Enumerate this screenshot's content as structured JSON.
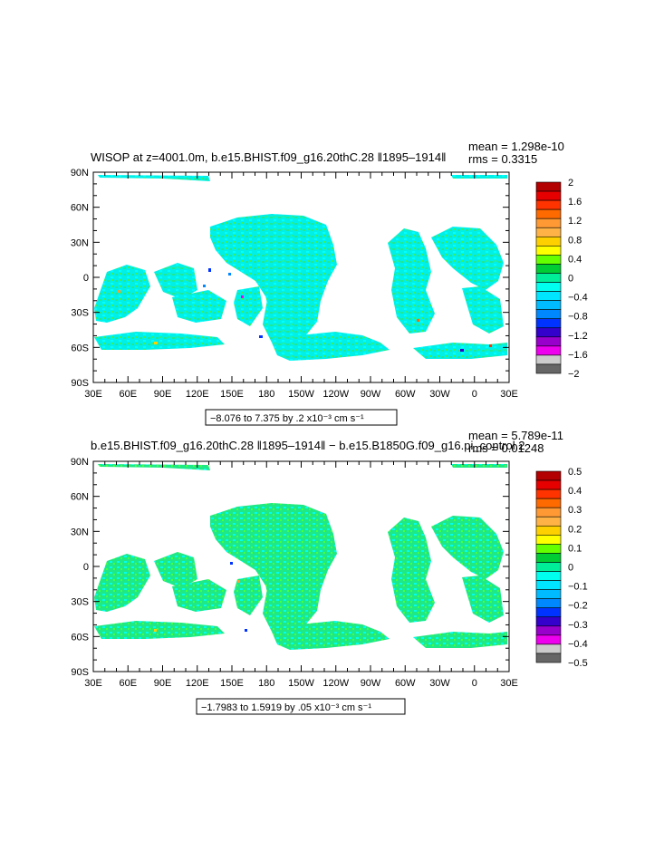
{
  "chart_data": [
    {
      "type": "heatmap",
      "title": "WISOP at z=4001.0m, b.e15.BHIST.f09_g16.20thC.28 ‖1895–1914‖",
      "stats": [
        "mean = 1.298e-10",
        "rms = 0.3315"
      ],
      "x_ticks": [
        "30E",
        "60E",
        "90E",
        "120E",
        "150E",
        "180",
        "150W",
        "120W",
        "90W",
        "60W",
        "30W",
        "0",
        "30E"
      ],
      "y_ticks": [
        "90N",
        "60N",
        "30N",
        "0",
        "30S",
        "60S",
        "90S"
      ],
      "xlim": [
        30,
        390
      ],
      "ylim": [
        -90,
        90
      ],
      "range_label": "−8.076 to 7.375 by .2 x10⁻³ cm s⁻¹",
      "colorbar": {
        "labels": [
          "2",
          "1.6",
          "1.2",
          "0.8",
          "0.4",
          "0",
          "−0.4",
          "−0.8",
          "−1.2",
          "−1.6",
          "−2"
        ],
        "colors": [
          "#b30000",
          "#e60000",
          "#ff3300",
          "#ff6a00",
          "#ff9933",
          "#ffb347",
          "#ffd000",
          "#ffff00",
          "#66ff00",
          "#00cc33",
          "#00ee99",
          "#00ffee",
          "#00e5ff",
          "#00bbff",
          "#0088ff",
          "#0033ff",
          "#3300cc",
          "#9900cc",
          "#ee00ee",
          "#cccccc",
          "#666666"
        ]
      }
    },
    {
      "type": "heatmap",
      "title": "b.e15.BHIST.f09_g16.20thC.28 ‖1895–1914‖ − b.e15.B1850G.f09_g16.pi_control.2",
      "stats": [
        "mean = 5.789e-11",
        "rms = 0.01248"
      ],
      "x_ticks": [
        "30E",
        "60E",
        "90E",
        "120E",
        "150E",
        "180",
        "150W",
        "120W",
        "90W",
        "60W",
        "30W",
        "0",
        "30E"
      ],
      "y_ticks": [
        "90N",
        "60N",
        "30N",
        "0",
        "30S",
        "60S",
        "90S"
      ],
      "xlim": [
        30,
        390
      ],
      "ylim": [
        -90,
        90
      ],
      "range_label": "−1.7983 to 1.5919 by .05 x10⁻³ cm s⁻¹",
      "colorbar": {
        "labels": [
          "0.5",
          "0.4",
          "0.3",
          "0.2",
          "0.1",
          "0",
          "−0.1",
          "−0.2",
          "−0.3",
          "−0.4",
          "−0.5"
        ],
        "colors": [
          "#b30000",
          "#e60000",
          "#ff3300",
          "#ff6a00",
          "#ff9933",
          "#ffb347",
          "#ffd000",
          "#ffff00",
          "#66ff00",
          "#00cc33",
          "#00ee99",
          "#00ffee",
          "#00e5ff",
          "#00bbff",
          "#0088ff",
          "#0033ff",
          "#3300cc",
          "#9900cc",
          "#ee00ee",
          "#cccccc",
          "#666666"
        ]
      }
    }
  ]
}
